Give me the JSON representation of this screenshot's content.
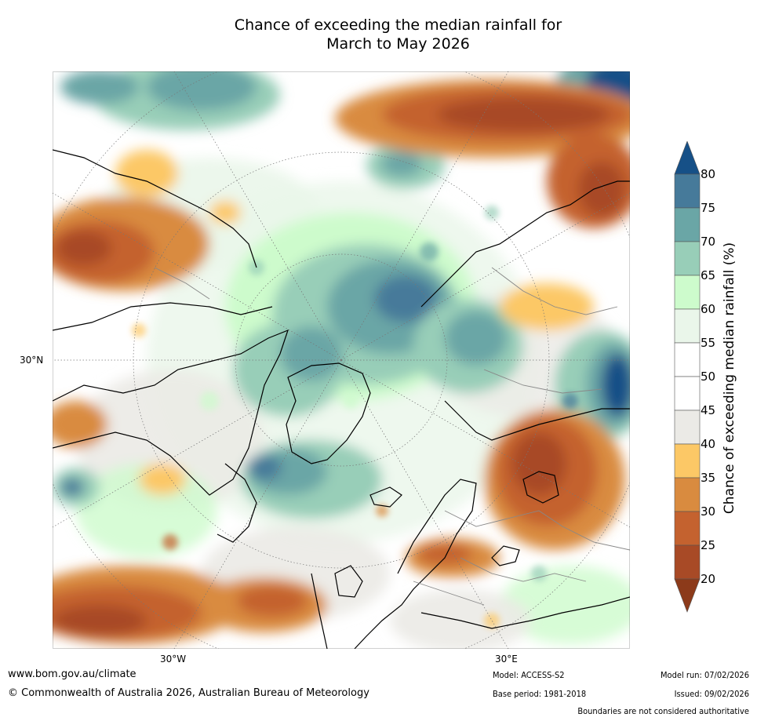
{
  "title": {
    "line1": "Chance of exceeding the median rainfall for",
    "line2": "March to May 2026"
  },
  "map": {
    "projection": "north-polar-stereographic",
    "longitude_labels": [
      "30°W",
      "30°E"
    ],
    "latitude_labels": [
      "30°N"
    ]
  },
  "colorbar": {
    "label": "Chance of exceeding median rainfall (%)",
    "ticks": [
      "20",
      "25",
      "30",
      "35",
      "40",
      "45",
      "50",
      "55",
      "60",
      "65",
      "70",
      "75",
      "80"
    ],
    "bands": [
      {
        "range": "<20",
        "color": "#8c3a1a"
      },
      {
        "range": "20-25",
        "color": "#a84a26"
      },
      {
        "range": "25-30",
        "color": "#c4622f"
      },
      {
        "range": "30-35",
        "color": "#d98b3f"
      },
      {
        "range": "35-40",
        "color": "#fcc866"
      },
      {
        "range": "40-45",
        "color": "#ebeae6"
      },
      {
        "range": "45-50",
        "color": "#ffffff"
      },
      {
        "range": "50-55",
        "color": "#ffffff"
      },
      {
        "range": "55-60",
        "color": "#eaf6ea"
      },
      {
        "range": "60-65",
        "color": "#cdfbcc"
      },
      {
        "range": "65-70",
        "color": "#98ceb8"
      },
      {
        "range": "70-75",
        "color": "#6aa6a6"
      },
      {
        "range": "75-80",
        "color": "#467a9a"
      },
      {
        "range": ">80",
        "color": "#165087"
      }
    ]
  },
  "footer": {
    "website": "www.bom.gov.au/climate",
    "copyright": "© Commonwealth of Australia 2026, Australian Bureau of Meteorology",
    "model": "Model: ACCESS-S2",
    "base_period": "Base period: 1981-2018",
    "model_run": "Model run: 07/02/2026",
    "issued": "Issued: 09/02/2026",
    "disclaimer": "Boundaries are not considered authoritative"
  }
}
